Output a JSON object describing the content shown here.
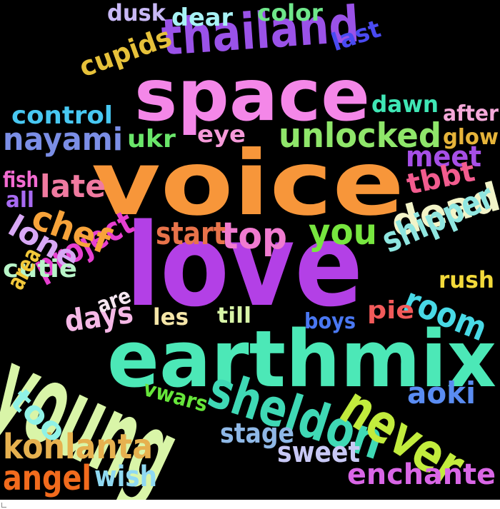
{
  "word_cloud": {
    "background": "#000000",
    "words": [
      {
        "text": "voice",
        "color": "#f7963a"
      },
      {
        "text": "love",
        "color": "#b340e6"
      },
      {
        "text": "space",
        "color": "#f487e8"
      },
      {
        "text": "earthmix",
        "color": "#4ce8b7"
      },
      {
        "text": "young",
        "color": "#d9f5a8"
      },
      {
        "text": "thailand",
        "color": "#9a52e8"
      },
      {
        "text": "sheldon",
        "color": "#3fd9b5"
      },
      {
        "text": "never",
        "color": "#c2ec3d"
      },
      {
        "text": "dead",
        "color": "#f2f4c8"
      },
      {
        "text": "unlocked",
        "color": "#8fe66a"
      },
      {
        "text": "kohlanta",
        "color": "#e6b14f"
      },
      {
        "text": "enchante",
        "color": "#d966e6"
      },
      {
        "text": "nayami",
        "color": "#7b8ee6"
      },
      {
        "text": "shipper",
        "color": "#8fe6e0"
      },
      {
        "text": "top",
        "color": "#f07bd0"
      },
      {
        "text": "start",
        "color": "#e8734a"
      },
      {
        "text": "you",
        "color": "#77e63f"
      },
      {
        "text": "project",
        "color": "#e63fd0"
      },
      {
        "text": "chef",
        "color": "#f7a33a"
      },
      {
        "text": "room",
        "color": "#48d9e6"
      },
      {
        "text": "angel",
        "color": "#f26b1d"
      },
      {
        "text": "meet",
        "color": "#a64fe6"
      },
      {
        "text": "tbbt",
        "color": "#f25c8f"
      },
      {
        "text": "late",
        "color": "#f07aa0"
      },
      {
        "text": "cupids",
        "color": "#e6c13a"
      },
      {
        "text": "control",
        "color": "#48c8f2"
      },
      {
        "text": "lone",
        "color": "#d8a8f5"
      },
      {
        "text": "days",
        "color": "#f5b8e6"
      },
      {
        "text": "aoki",
        "color": "#5a8cf2"
      },
      {
        "text": "sweet",
        "color": "#c8c8f5"
      },
      {
        "text": "stage",
        "color": "#8fb8e6"
      },
      {
        "text": "wish",
        "color": "#8fd9f2"
      },
      {
        "text": "too",
        "color": "#8ff2e6"
      },
      {
        "text": "dear",
        "color": "#a8f2f5"
      },
      {
        "text": "color",
        "color": "#6fe68a"
      },
      {
        "text": "dusk",
        "color": "#c8b8f5"
      },
      {
        "text": "last",
        "color": "#4a4af2"
      },
      {
        "text": "dawn",
        "color": "#3fe6b5"
      },
      {
        "text": "after",
        "color": "#f5a8d9"
      },
      {
        "text": "glow",
        "color": "#e6b43a"
      },
      {
        "text": "eye",
        "color": "#f59ad9"
      },
      {
        "text": "ukr",
        "color": "#6ae66a"
      },
      {
        "text": "cutie",
        "color": "#b8f5c8"
      },
      {
        "text": "area",
        "color": "#f2c83a"
      },
      {
        "text": "are",
        "color": "#f5e6f0"
      },
      {
        "text": "les",
        "color": "#f5e6a8"
      },
      {
        "text": "till",
        "color": "#d8f5a8"
      },
      {
        "text": "boys",
        "color": "#4a78f2"
      },
      {
        "text": "pie",
        "color": "#f25a5a"
      },
      {
        "text": "rush",
        "color": "#f2d93a"
      },
      {
        "text": "vwars",
        "color": "#66e63a"
      },
      {
        "text": "fish",
        "color": "#f26bd0"
      },
      {
        "text": "all",
        "color": "#a86bf2"
      }
    ]
  }
}
